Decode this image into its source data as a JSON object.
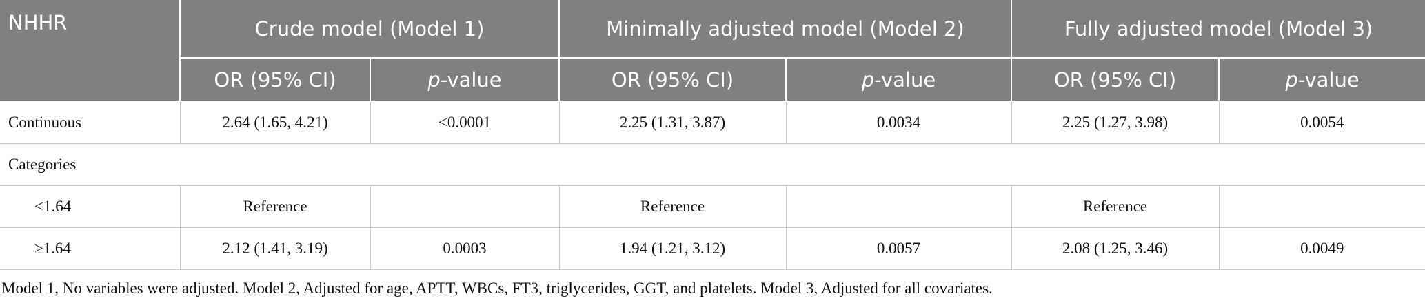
{
  "header": {
    "row_label": "NHHR",
    "groups": [
      "Crude model (Model 1)",
      "Minimally adjusted model (Model 2)",
      "Fully adjusted model (Model 3)"
    ],
    "subheaders": [
      {
        "text": "OR (95% CI)"
      },
      {
        "italic": "p",
        "text": "-value"
      },
      {
        "text": "OR (95% CI)"
      },
      {
        "italic": "p",
        "text": "-value"
      },
      {
        "text": "OR (95% CI)"
      },
      {
        "italic": "p",
        "text": "-value"
      }
    ]
  },
  "table": {
    "rows": [
      [
        "Continuous",
        "2.64 (1.65, 4.21)",
        "<0.0001",
        "2.25 (1.31, 3.87)",
        "0.0034",
        "2.25 (1.27, 3.98)",
        "0.0054"
      ],
      [
        "Categories"
      ],
      [
        "<1.64",
        "Reference",
        null,
        "Reference",
        null,
        "Reference",
        null
      ],
      [
        "≥1.64",
        "2.12 (1.41, 3.19)",
        "0.0003",
        "1.94 (1.21, 3.12)",
        "0.0057",
        "2.08 (1.25, 3.46)",
        "0.0049"
      ]
    ]
  },
  "footnote": "Model 1, No variables were adjusted. Model 2, Adjusted for age, APTT, WBCs, FT3, triglycerides, GGT, and platelets. Model 3, Adjusted for all covariates."
}
